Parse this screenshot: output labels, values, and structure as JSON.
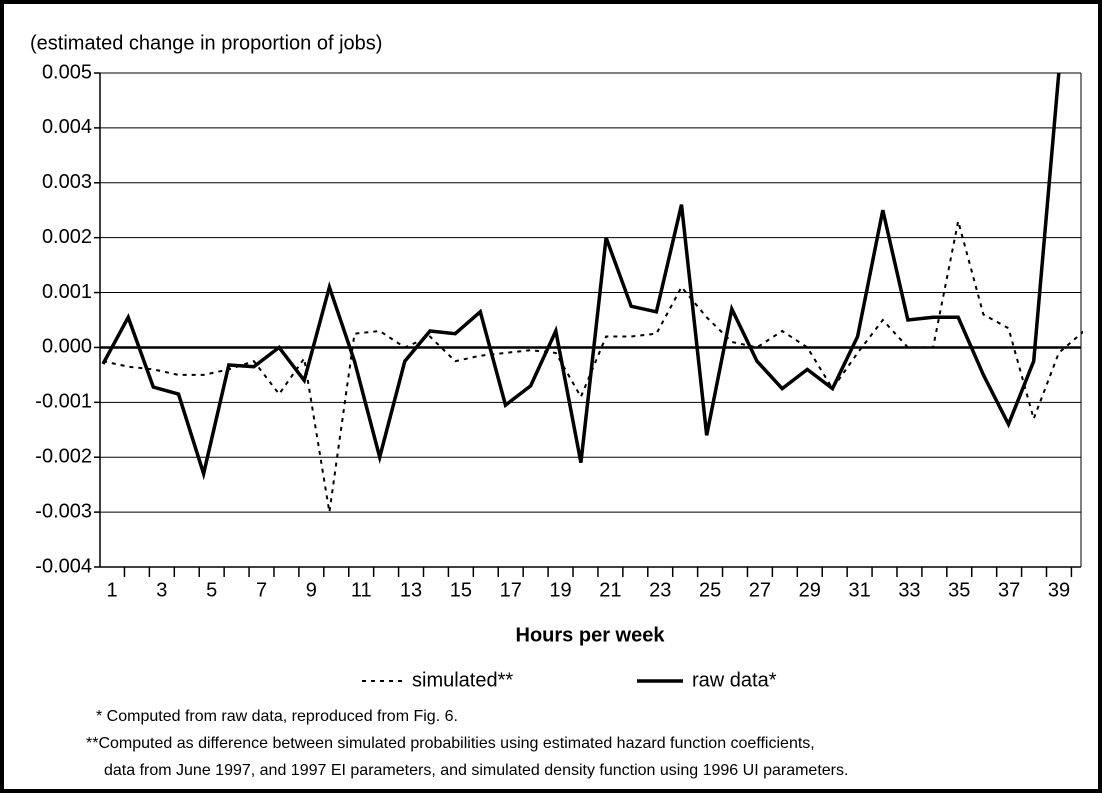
{
  "chart_data": {
    "type": "line",
    "y_label": "(estimated change in proportion of jobs)",
    "x_label": "Hours per week",
    "categories": [
      1,
      null,
      3,
      null,
      5,
      null,
      7,
      null,
      9,
      null,
      11,
      null,
      13,
      null,
      15,
      null,
      17,
      null,
      19,
      null,
      21,
      null,
      23,
      null,
      25,
      null,
      27,
      null,
      29,
      null,
      31,
      null,
      33,
      null,
      35,
      null,
      37,
      null,
      39,
      null
    ],
    "series": [
      {
        "name": "simulated**",
        "color": "#000000",
        "dash": "4,5",
        "width": 2,
        "values": [
          -0.00025,
          -0.00035,
          -0.0004,
          -0.0005,
          -0.0005,
          -0.0004,
          -0.00025,
          -0.00085,
          -0.0002,
          -0.003,
          0.00025,
          0.0003,
          0.0,
          0.0002,
          -0.00025,
          -0.00015,
          -0.0001,
          -5e-05,
          -0.0001,
          -0.0009,
          0.0002,
          0.0002,
          0.00025,
          0.0011,
          0.00055,
          0.0001,
          0.0,
          0.0003,
          0.0,
          -0.00075,
          -0.0001,
          0.0005,
          0.0,
          0.0,
          0.0023,
          0.0006,
          0.00035,
          -0.0013,
          -0.0001,
          0.0003
        ]
      },
      {
        "name": "raw data*",
        "color": "#000000",
        "width": 3.5,
        "values": [
          -0.0003,
          0.00055,
          -0.00072,
          -0.00085,
          -0.0023,
          -0.00032,
          -0.00035,
          0.0,
          -0.0006,
          0.0011,
          -0.00025,
          -0.002,
          -0.00025,
          0.0003,
          0.00025,
          0.00065,
          -0.00105,
          -0.0007,
          0.0003,
          -0.0021,
          0.002,
          0.00075,
          0.00065,
          0.0026,
          -0.0016,
          0.0007,
          -0.00025,
          -0.00075,
          -0.0004,
          -0.00075,
          0.0002,
          0.0025,
          0.0005,
          0.00055,
          0.00055,
          -0.0005,
          -0.0014,
          -0.00025,
          0.005,
          null
        ]
      }
    ],
    "ylim": [
      -0.004,
      0.005
    ],
    "yticks": [
      -0.004,
      -0.003,
      -0.002,
      -0.001,
      {
        "value": 0,
        "label": "0.000"
      },
      0.001,
      0.002,
      0.003,
      0.004,
      0.005
    ],
    "grid": true,
    "legend": "bottom",
    "notes": [
      "*  Computed from raw data, reproduced from Fig. 6.",
      "**Computed as difference between simulated probabilities using estimated hazard function coefficients,",
      "data from June 1997, and 1997 EI parameters, and simulated density function using 1996 UI parameters."
    ]
  }
}
